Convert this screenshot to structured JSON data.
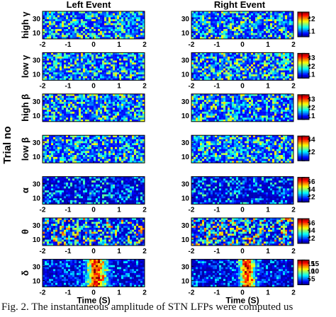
{
  "figure": {
    "type": "heatmap",
    "column_titles": [
      "Left Event",
      "Right Event"
    ],
    "shared_ylabel": "Trial no",
    "xlabel": "Time (S)",
    "caption": "Fig. 2. The instantaneous amplitude of STN LFPs were computed us"
  },
  "chart_data": {
    "type": "heatmap",
    "colormap": "jet",
    "x_range": [
      -2,
      2
    ],
    "x_ticks": [
      "-2",
      "-1",
      "0",
      "1",
      "2"
    ],
    "y_range": [
      1,
      40
    ],
    "y_ticks": [
      "30",
      "10"
    ],
    "xlabel": "Time (S)",
    "ylabel": "Trial no",
    "bands": [
      {
        "label": "high γ",
        "colorbar_ticks": [
          "2",
          "1"
        ],
        "color_range": [
          0.5,
          2.5
        ],
        "has_x_ticks": true,
        "has_xlabel": false
      },
      {
        "label": "low γ",
        "colorbar_ticks": [
          "3",
          "2",
          "1"
        ],
        "color_range": [
          0.5,
          3.5
        ],
        "has_x_ticks": true,
        "has_xlabel": false
      },
      {
        "label": "high β",
        "colorbar_ticks": [
          "3",
          "2",
          "1"
        ],
        "color_range": [
          0.5,
          3.5
        ],
        "has_x_ticks": false,
        "has_xlabel": false
      },
      {
        "label": "low β",
        "colorbar_ticks": [
          "4",
          "2"
        ],
        "color_range": [
          0.5,
          4.5
        ],
        "has_x_ticks": false,
        "has_xlabel": false
      },
      {
        "label": "α",
        "colorbar_ticks": [
          "6",
          "4",
          "2"
        ],
        "color_range": [
          0.5,
          7
        ],
        "has_x_ticks": true,
        "has_xlabel": false
      },
      {
        "label": "θ",
        "colorbar_ticks": [
          "6",
          "4",
          "2"
        ],
        "color_range": [
          0.5,
          7
        ],
        "has_x_ticks": true,
        "has_xlabel": false
      },
      {
        "label": "δ",
        "colorbar_ticks": [
          "15",
          "10",
          "5"
        ],
        "color_range": [
          1,
          17
        ],
        "has_x_ticks": true,
        "has_xlabel": true
      }
    ]
  }
}
